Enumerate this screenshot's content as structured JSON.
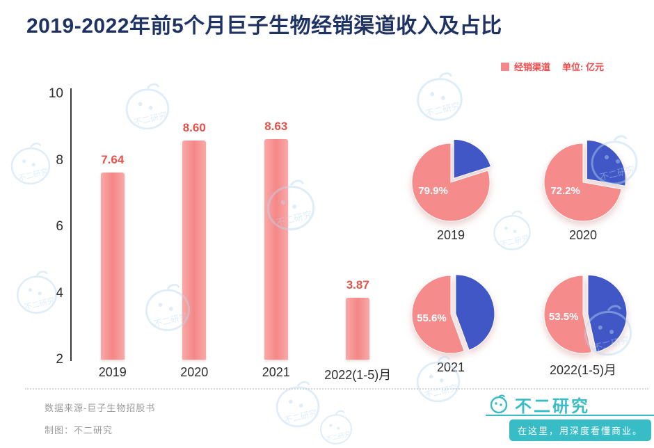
{
  "title": "2019-2022年前5个月巨子生物经销渠道收入及占比",
  "legend": {
    "series": "经销渠道",
    "unit": "单位: 亿元"
  },
  "chart_data": [
    {
      "type": "bar",
      "name": "经销渠道收入(亿元)",
      "categories": [
        "2019",
        "2020",
        "2021",
        "2022(1-5)月"
      ],
      "values": [
        7.64,
        8.6,
        8.63,
        3.87
      ],
      "value_labels": [
        "7.64",
        "8.60",
        "8.63",
        "3.87"
      ],
      "ylim": [
        2,
        10
      ],
      "yticks": [
        2,
        4,
        6,
        8,
        10
      ],
      "grid": false,
      "unit": "亿元"
    },
    {
      "type": "pie",
      "name": "经销渠道收入占比",
      "items": [
        {
          "label": "2019",
          "main_pct": 79.9,
          "main_label": "79.9%",
          "other_pct": 20.1
        },
        {
          "label": "2020",
          "main_pct": 72.2,
          "main_label": "72.2%",
          "other_pct": 27.8
        },
        {
          "label": "2021",
          "main_pct": 55.6,
          "main_label": "55.6%",
          "other_pct": 44.4
        },
        {
          "label": "2022(1-5)月",
          "main_pct": 53.5,
          "main_label": "53.5%",
          "other_pct": 46.5
        }
      ],
      "legend_position": "top-right"
    }
  ],
  "footer": {
    "source": "数据来源-巨子生物招股书",
    "credit": "制图：不二研究",
    "brand": "不二研究",
    "slogan": "在这里，用深度看懂商业。"
  },
  "watermark_text": "不二研究",
  "colors": {
    "title_color": "#1e3264",
    "legend_color": "#ef4a4a",
    "bar_color": "#f48787",
    "bar_color_light": "#f9a9a9",
    "value_label_color": "#e2544a",
    "pie_main_color": "#f58b8b",
    "pie_other_color": "#4157c6",
    "axis_color": "#3a3a3a",
    "text_color": "#2d2d2d",
    "teal_color": "#38bcc6",
    "muted_color": "#9b9b9b",
    "watermark_color": "#b9d9f1"
  }
}
